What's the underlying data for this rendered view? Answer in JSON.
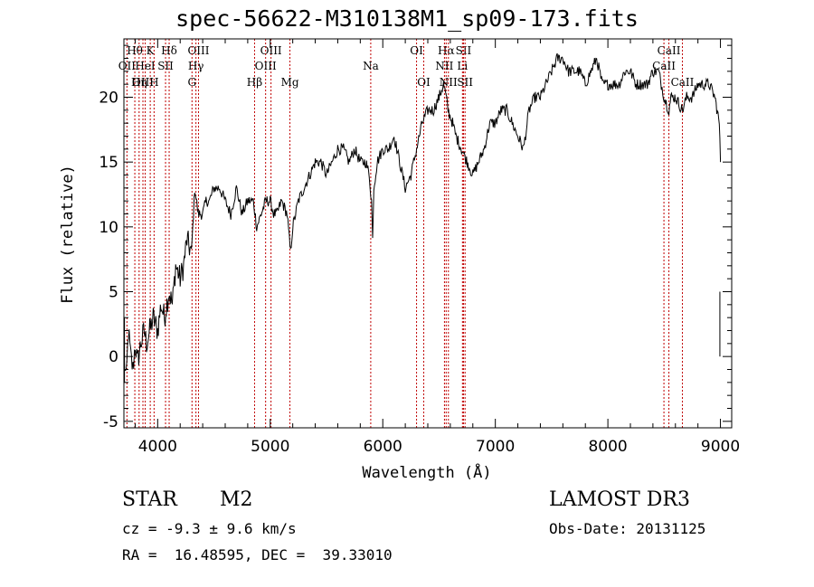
{
  "chart_data": {
    "type": "line",
    "title": "spec-56622-M310138M1_sp09-173.fits",
    "xlabel": "Wavelength (Å)",
    "ylabel": "Flux (relative)",
    "xlim": [
      3700,
      9100
    ],
    "ylim": [
      -5.5,
      24.5
    ],
    "xticks": [
      4000,
      5000,
      6000,
      7000,
      8000,
      9000
    ],
    "yticks": [
      -5,
      0,
      5,
      10,
      15,
      20
    ],
    "grid": false,
    "series": [
      {
        "x": [
          3700,
          3720,
          3740,
          3760,
          3780,
          3800,
          3820,
          3850,
          3880,
          3900,
          3930,
          3960,
          4000,
          4030,
          4060,
          4100,
          4130,
          4160,
          4200,
          4230,
          4260,
          4300,
          4330,
          4360,
          4400,
          4430,
          4460,
          4500,
          4550,
          4600,
          4650,
          4700,
          4750,
          4800,
          4850,
          4880,
          4920,
          4960,
          5000,
          5030,
          5060,
          5100,
          5150,
          5170,
          5180,
          5200,
          5250,
          5300,
          5350,
          5400,
          5450,
          5500,
          5550,
          5600,
          5650,
          5700,
          5750,
          5800,
          5850,
          5880,
          5900,
          5910,
          5920,
          5950,
          6000,
          6050,
          6100,
          6150,
          6200,
          6250,
          6300,
          6350,
          6400,
          6450,
          6500,
          6540,
          6563,
          6580,
          6620,
          6650,
          6700,
          6750,
          6800,
          6850,
          6900,
          6950,
          7000,
          7050,
          7100,
          7150,
          7200,
          7250,
          7300,
          7350,
          7400,
          7450,
          7500,
          7550,
          7600,
          7650,
          7700,
          7750,
          7800,
          7850,
          7900,
          7950,
          8000,
          8050,
          8100,
          8150,
          8200,
          8250,
          8300,
          8350,
          8400,
          8450,
          8500,
          8542,
          8560,
          8600,
          8662,
          8700,
          8750,
          8800,
          8850,
          8900,
          8950,
          8990,
          9000
        ],
        "y": [
          0,
          -2,
          2,
          0,
          -1,
          1,
          -0.5,
          1,
          2,
          1,
          2,
          3,
          2,
          4,
          3,
          5,
          4,
          7,
          6,
          7,
          9,
          8,
          13,
          11,
          11,
          12,
          12,
          13,
          13,
          12,
          11,
          13,
          11,
          12,
          12,
          10,
          11,
          12,
          12,
          11,
          11,
          12,
          11,
          9,
          8,
          10,
          12,
          13,
          14,
          15,
          15,
          14,
          15,
          16,
          16,
          15,
          16,
          15,
          15,
          14,
          12,
          9,
          13,
          15,
          16,
          16,
          17,
          15,
          13,
          14,
          16,
          18,
          19,
          19,
          20,
          21,
          20,
          19,
          18,
          17,
          16,
          15,
          14,
          15,
          16,
          18,
          18,
          19,
          19,
          18,
          17,
          16,
          19,
          20,
          20,
          21,
          22,
          23,
          23,
          22,
          22,
          22,
          21,
          22,
          23,
          21,
          21,
          21,
          21,
          22,
          22,
          21,
          21,
          21,
          22,
          22,
          20,
          19,
          20,
          20,
          19,
          20,
          20,
          21,
          21,
          21,
          20,
          18,
          15
        ]
      }
    ],
    "line_markers": [
      {
        "label": "Hθ",
        "wavelength": 3797,
        "row": 0
      },
      {
        "label": "OII",
        "wavelength": 3727,
        "row": 1
      },
      {
        "label": "OIII",
        "wavelength": 3869,
        "row": 2
      },
      {
        "label": "K",
        "wavelength": 3934,
        "row": 0
      },
      {
        "label": "HeI",
        "wavelength": 3889,
        "row": 1
      },
      {
        "label": "H",
        "wavelength": 3968,
        "row": 2
      },
      {
        "label": "Hη",
        "wavelength": 3835,
        "row": 2
      },
      {
        "label": "SII",
        "wavelength": 4070,
        "row": 1
      },
      {
        "label": "Hδ",
        "wavelength": 4102,
        "row": 0
      },
      {
        "label": "OIII",
        "wavelength": 4363,
        "row": 0
      },
      {
        "label": "Hγ",
        "wavelength": 4340,
        "row": 1
      },
      {
        "label": "G",
        "wavelength": 4305,
        "row": 2
      },
      {
        "label": "Hβ",
        "wavelength": 4861,
        "row": 2
      },
      {
        "label": "OIII",
        "wavelength": 5007,
        "row": 0
      },
      {
        "label": "OIII",
        "wavelength": 4959,
        "row": 1
      },
      {
        "label": "Mg",
        "wavelength": 5175,
        "row": 2
      },
      {
        "label": "Na",
        "wavelength": 5893,
        "row": 1
      },
      {
        "label": "OI",
        "wavelength": 6300,
        "row": 0
      },
      {
        "label": "OI",
        "wavelength": 6364,
        "row": 2
      },
      {
        "label": "Hα",
        "wavelength": 6563,
        "row": 0
      },
      {
        "label": "NII",
        "wavelength": 6548,
        "row": 1
      },
      {
        "label": "NII",
        "wavelength": 6583,
        "row": 2
      },
      {
        "label": "SII",
        "wavelength": 6717,
        "row": 0
      },
      {
        "label": "Li",
        "wavelength": 6708,
        "row": 1
      },
      {
        "label": "SII",
        "wavelength": 6731,
        "row": 2
      },
      {
        "label": "CaII",
        "wavelength": 8542,
        "row": 0
      },
      {
        "label": "CaII",
        "wavelength": 8498,
        "row": 1
      },
      {
        "label": "CaII",
        "wavelength": 8662,
        "row": 2
      }
    ]
  },
  "info": {
    "class": "STAR",
    "subclass": "M2",
    "cz": "cz = -9.3 ± 9.6 km/s",
    "radec": "RA =  16.48595, DEC =  39.33010",
    "survey": "LAMOST DR3",
    "obsdate": "Obs-Date: 20131125"
  }
}
